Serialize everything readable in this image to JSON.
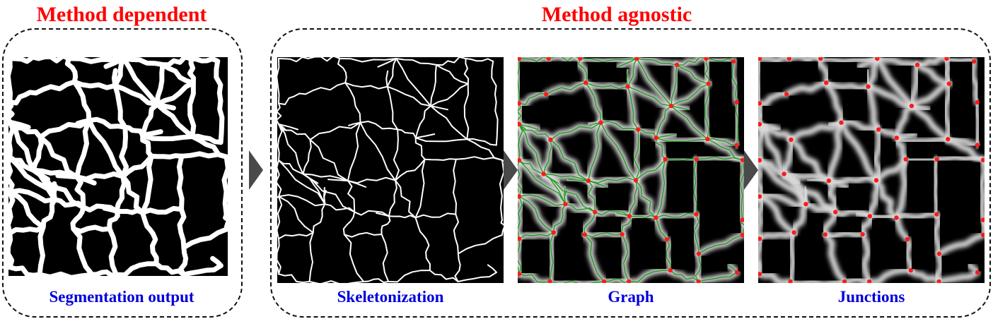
{
  "groups": {
    "dependent": {
      "title": "Method dependent"
    },
    "agnostic": {
      "title": "Method agnostic"
    }
  },
  "panels": {
    "segmentation": {
      "label": "Segmentation output"
    },
    "skeleton": {
      "label": "Skeletonization"
    },
    "graph": {
      "label": "Graph"
    },
    "junctions": {
      "label": "Junctions"
    }
  },
  "colors": {
    "title": "#ff0000",
    "label": "#0000dd",
    "edge": "#1f9e1f",
    "node": "#ff1a1a",
    "arrow": "#4a4a4a"
  }
}
